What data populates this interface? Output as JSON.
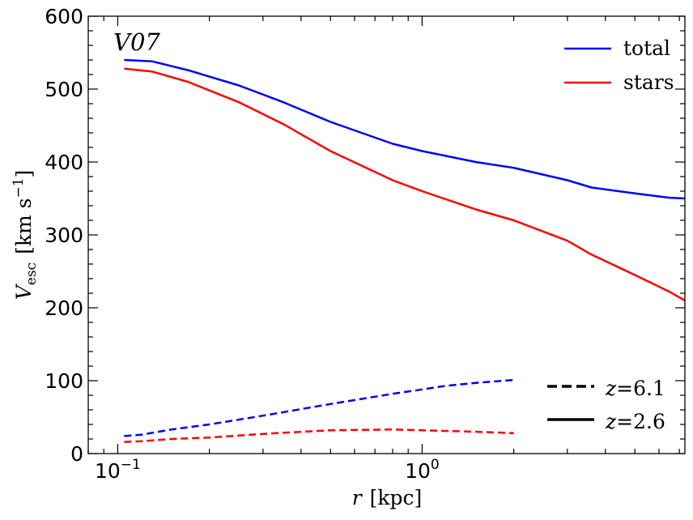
{
  "chart_data": {
    "type": "line",
    "panel_label": "V07",
    "xlabel": {
      "var": "r",
      "unit": "[kpc]"
    },
    "ylabel": {
      "var": "V",
      "sub": "esc",
      "unit_pre": "[km s",
      "unit_exp": "−1",
      "unit_post": "]"
    },
    "xscale": "log",
    "xlim": [
      0.08,
      7.3
    ],
    "ylim": [
      0,
      600
    ],
    "yticks": [
      {
        "value": 0,
        "label": "0"
      },
      {
        "value": 100,
        "label": "100"
      },
      {
        "value": 200,
        "label": "200"
      },
      {
        "value": 300,
        "label": "300"
      },
      {
        "value": 400,
        "label": "400"
      },
      {
        "value": 500,
        "label": "500"
      },
      {
        "value": 600,
        "label": "600"
      }
    ],
    "xticks": [
      {
        "value": 0.1,
        "base": "10",
        "exp": "−1"
      },
      {
        "value": 1,
        "base": "10",
        "exp": "0"
      }
    ],
    "legend_components": [
      {
        "label": "total",
        "color": "#0000ff"
      },
      {
        "label": "stars",
        "color": "#ff0000"
      }
    ],
    "legend_redshift": [
      {
        "label": "z = 6.1",
        "var": "z",
        "value": "6.1",
        "dash": "dashed"
      },
      {
        "label": "z = 2.6",
        "var": "z",
        "value": "2.6",
        "dash": "solid"
      }
    ],
    "series": [
      {
        "name": "total z=2.6",
        "component": "total",
        "redshift": "2.6",
        "color": "#0000ff",
        "dash": "solid",
        "x": [
          0.105,
          0.13,
          0.17,
          0.25,
          0.35,
          0.5,
          0.8,
          1.0,
          1.5,
          2.0,
          3.0,
          3.6,
          5.0,
          6.5,
          7.3
        ],
        "y": [
          540,
          538,
          526,
          505,
          482,
          455,
          425,
          415,
          400,
          392,
          375,
          365,
          357,
          351,
          350
        ]
      },
      {
        "name": "stars z=2.6",
        "component": "stars",
        "redshift": "2.6",
        "color": "#ff0000",
        "dash": "solid",
        "x": [
          0.105,
          0.13,
          0.17,
          0.25,
          0.35,
          0.5,
          0.8,
          1.0,
          1.5,
          2.0,
          3.0,
          3.6,
          5.0,
          6.5,
          7.3
        ],
        "y": [
          528,
          524,
          510,
          482,
          452,
          415,
          375,
          360,
          335,
          320,
          292,
          273,
          245,
          222,
          210
        ]
      },
      {
        "name": "total z=6.1",
        "component": "total",
        "redshift": "6.1",
        "color": "#0000ff",
        "dash": "dashed",
        "x": [
          0.105,
          0.12,
          0.15,
          0.2,
          0.3,
          0.5,
          0.8,
          1.0,
          1.2,
          1.5,
          2.0
        ],
        "y": [
          24,
          26,
          33,
          40,
          52,
          68,
          82,
          88,
          93,
          97,
          101
        ]
      },
      {
        "name": "stars z=6.1",
        "component": "stars",
        "redshift": "6.1",
        "color": "#ff0000",
        "dash": "dashed",
        "x": [
          0.105,
          0.12,
          0.15,
          0.2,
          0.3,
          0.5,
          0.8,
          1.0,
          1.5,
          2.0
        ],
        "y": [
          16,
          17,
          20,
          22,
          27,
          32,
          33,
          32,
          30,
          28
        ]
      }
    ]
  }
}
